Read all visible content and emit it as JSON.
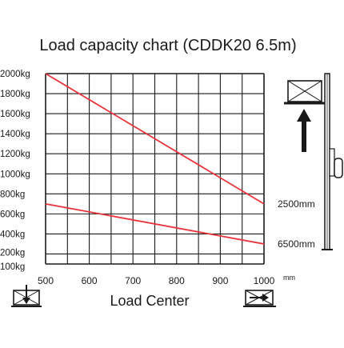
{
  "chart_data": {
    "type": "line",
    "title": "Load capacity chart (CDDK20 6.5m)",
    "xlabel": "Load Center",
    "x_unit": "mm",
    "ylabel": "",
    "x_ticks": [
      500,
      600,
      700,
      800,
      900,
      1000
    ],
    "y_ticks": [
      100,
      200,
      400,
      600,
      800,
      1000,
      1200,
      1400,
      1600,
      1800,
      2000
    ],
    "y_tick_labels": [
      "100kg",
      "200kg",
      "400kg",
      "600kg",
      "800kg",
      "1000kg",
      "1200kg",
      "1400kg",
      "1600kg",
      "1800kg",
      "2000kg"
    ],
    "xlim": [
      500,
      1000
    ],
    "ylim": [
      100,
      2000
    ],
    "grid": true,
    "series": [
      {
        "name": "2500mm",
        "color": "#e8333a",
        "x": [
          500,
          1000
        ],
        "y": [
          2000,
          700
        ]
      },
      {
        "name": "6500mm",
        "color": "#e8333a",
        "x": [
          500,
          1000
        ],
        "y": [
          700,
          300
        ]
      }
    ]
  },
  "icons": {
    "left_load_center": "pallet-load-center-down-icon",
    "right_load_center": "pallet-load-center-right-icon",
    "forklift": "forklift-mast-icon",
    "lift_arrow": "up-arrow-icon"
  }
}
